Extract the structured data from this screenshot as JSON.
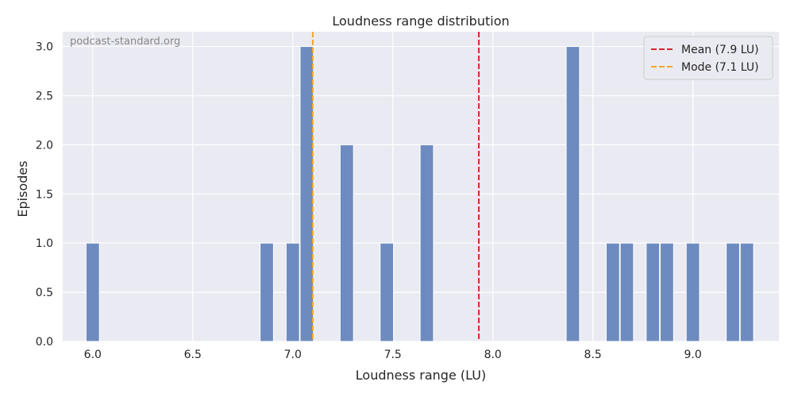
{
  "chart_data": {
    "type": "bar",
    "title": "Loudness range distribution",
    "xlabel": "Loudness range (LU)",
    "ylabel": "Episodes",
    "watermark": "podcast-standard.org",
    "xlim": [
      5.85,
      9.43
    ],
    "ylim": [
      0,
      3.15
    ],
    "xticks": [
      "6.0",
      "6.5",
      "7.0",
      "7.5",
      "8.0",
      "8.5",
      "9.0"
    ],
    "yticks": [
      "0.0",
      "0.5",
      "1.0",
      "1.5",
      "2.0",
      "2.5",
      "3.0"
    ],
    "bin_width": 0.0667,
    "bins": [
      {
        "x": 6.0,
        "count": 1
      },
      {
        "x": 6.87,
        "count": 1
      },
      {
        "x": 7.0,
        "count": 1
      },
      {
        "x": 7.07,
        "count": 3
      },
      {
        "x": 7.27,
        "count": 2
      },
      {
        "x": 7.47,
        "count": 1
      },
      {
        "x": 7.67,
        "count": 2
      },
      {
        "x": 8.4,
        "count": 3
      },
      {
        "x": 8.6,
        "count": 1
      },
      {
        "x": 8.67,
        "count": 1
      },
      {
        "x": 8.8,
        "count": 1
      },
      {
        "x": 8.87,
        "count": 1
      },
      {
        "x": 9.0,
        "count": 1
      },
      {
        "x": 9.2,
        "count": 1
      },
      {
        "x": 9.27,
        "count": 1
      }
    ],
    "reference_lines": [
      {
        "label": "Mean (7.9 LU)",
        "x": 7.93,
        "color": "#d62728",
        "style": "dashed"
      },
      {
        "label": "Mode (7.1 LU)",
        "x": 7.1,
        "color": "#f5a623",
        "style": "dashed"
      }
    ],
    "bar_color": "#6d8bbf",
    "background_color": "#eaeaf2",
    "grid": true,
    "legend_position": "top-right"
  }
}
